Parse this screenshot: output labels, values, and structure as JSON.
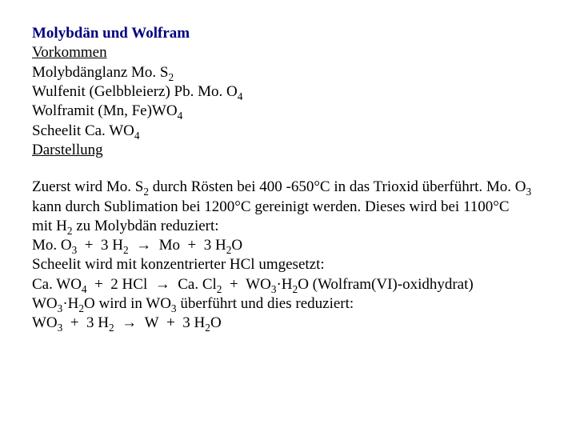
{
  "colors": {
    "title": "#000080",
    "body_text": "#000000",
    "background": "#ffffff"
  },
  "typography": {
    "family": "Times New Roman",
    "size_pt": 14,
    "title_weight": "bold"
  },
  "title": "Molybdän und Wolfram",
  "sections": {
    "vorkommen": {
      "heading": "Vorkommen",
      "lines": [
        "Molybdänglanz Mo. S<sub>2</sub>",
        "Wulfenit (Gelbbleierz) Pb. Mo. O<sub>4</sub>",
        "Wolframit (Mn, Fe)WO<sub>4</sub>",
        "Scheelit Ca. WO<sub>4</sub>"
      ]
    },
    "darstellung": {
      "heading": "Darstellung",
      "lines": [
        "Zuerst wird Mo. S<sub>2</sub> durch Rösten bei 400 -650°C in das Trioxid überführt. Mo. O<sub>3</sub>",
        "kann durch Sublimation bei 1200°C gereinigt werden. Dieses wird bei 1100°C",
        "mit H<sub>2</sub> zu Molybdän reduziert:",
        "Mo. O<sub>3</sub>&nbsp;&nbsp;+&nbsp;&nbsp;3 H<sub>2</sub>&nbsp;&nbsp;→&nbsp;&nbsp;Mo&nbsp;&nbsp;+&nbsp;&nbsp;3 H<sub>2</sub>O",
        "Scheelit wird mit konzentrierter HCl umgesetzt:",
        "Ca. WO<sub>4</sub>&nbsp;&nbsp;+&nbsp;&nbsp;2 HCl&nbsp;&nbsp;→&nbsp;&nbsp;Ca. Cl<sub>2</sub>&nbsp;&nbsp;+&nbsp;&nbsp;WO<sub>3</sub>·H<sub>2</sub>O (Wolfram(VI)-oxidhydrat)",
        "WO<sub>3</sub>·H<sub>2</sub>O wird in WO<sub>3</sub> überführt und dies reduziert:",
        "WO<sub>3</sub>&nbsp;&nbsp;+&nbsp;&nbsp;3 H<sub>2</sub>&nbsp;&nbsp;→&nbsp;&nbsp;W&nbsp;&nbsp;+&nbsp;&nbsp;3 H<sub>2</sub>O"
      ]
    }
  }
}
